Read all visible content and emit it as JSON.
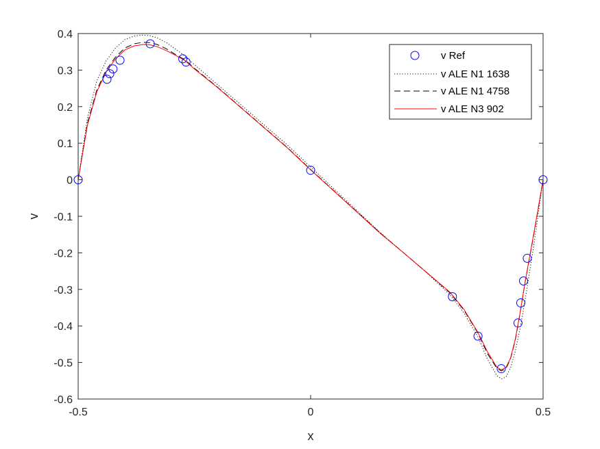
{
  "chart_data": {
    "type": "line",
    "title": "",
    "xlabel": "x",
    "ylabel": "v",
    "xlim": [
      -0.5,
      0.5
    ],
    "ylim": [
      -0.6,
      0.4
    ],
    "xticks": [
      -0.5,
      0,
      0.5
    ],
    "xtick_labels": [
      "-0.5",
      "0",
      "0.5"
    ],
    "yticks": [
      -0.6,
      -0.5,
      -0.4,
      -0.3,
      -0.2,
      -0.1,
      0,
      0.1,
      0.2,
      0.3,
      0.4
    ],
    "ytick_labels": [
      "-0.6",
      "-0.5",
      "-0.4",
      "-0.3",
      "-0.2",
      "-0.1",
      "0",
      "0.1",
      "0.2",
      "0.3",
      "0.4"
    ],
    "grid": false,
    "legend_position": "top-right",
    "series": [
      {
        "name": "v Ref",
        "style": "markers-circle",
        "color": "#0000ff",
        "x": [
          -0.5,
          -0.438,
          -0.432,
          -0.425,
          -0.41,
          -0.345,
          -0.275,
          -0.268,
          0.0,
          0.305,
          0.36,
          0.41,
          0.446,
          0.452,
          0.458,
          0.466,
          0.5
        ],
        "y": [
          0.0,
          0.275,
          0.29,
          0.303,
          0.327,
          0.372,
          0.331,
          0.322,
          0.026,
          -0.32,
          -0.428,
          -0.517,
          -0.392,
          -0.337,
          -0.277,
          -0.215,
          0.0
        ]
      },
      {
        "name": "v ALE N1 1638",
        "style": "dotted",
        "color": "#000000",
        "x": [
          -0.5,
          -0.48,
          -0.46,
          -0.44,
          -0.42,
          -0.4,
          -0.38,
          -0.36,
          -0.345,
          -0.33,
          -0.31,
          -0.29,
          -0.27,
          -0.25,
          -0.2,
          -0.15,
          -0.1,
          -0.05,
          0.0,
          0.05,
          0.1,
          0.15,
          0.2,
          0.25,
          0.3,
          0.33,
          0.36,
          0.38,
          0.4,
          0.41,
          0.42,
          0.43,
          0.44,
          0.45,
          0.46,
          0.47,
          0.48,
          0.49,
          0.5
        ],
        "y": [
          0.0,
          0.17,
          0.27,
          0.325,
          0.36,
          0.383,
          0.393,
          0.396,
          0.394,
          0.388,
          0.375,
          0.357,
          0.338,
          0.315,
          0.26,
          0.205,
          0.15,
          0.095,
          0.035,
          -0.025,
          -0.085,
          -0.145,
          -0.2,
          -0.255,
          -0.315,
          -0.365,
          -0.43,
          -0.49,
          -0.535,
          -0.545,
          -0.54,
          -0.515,
          -0.47,
          -0.41,
          -0.34,
          -0.26,
          -0.18,
          -0.09,
          0.0
        ]
      },
      {
        "name": "v ALE N1 4758",
        "style": "dashed",
        "color": "#000000",
        "x": [
          -0.5,
          -0.48,
          -0.46,
          -0.44,
          -0.42,
          -0.4,
          -0.38,
          -0.36,
          -0.345,
          -0.33,
          -0.31,
          -0.29,
          -0.27,
          -0.25,
          -0.2,
          -0.15,
          -0.1,
          -0.05,
          0.0,
          0.05,
          0.1,
          0.15,
          0.2,
          0.25,
          0.3,
          0.33,
          0.36,
          0.38,
          0.4,
          0.41,
          0.42,
          0.43,
          0.44,
          0.45,
          0.46,
          0.47,
          0.48,
          0.49,
          0.5
        ],
        "y": [
          0.0,
          0.155,
          0.245,
          0.3,
          0.335,
          0.36,
          0.372,
          0.376,
          0.375,
          0.37,
          0.358,
          0.342,
          0.328,
          0.305,
          0.253,
          0.198,
          0.143,
          0.088,
          0.028,
          -0.03,
          -0.088,
          -0.146,
          -0.2,
          -0.254,
          -0.31,
          -0.357,
          -0.42,
          -0.475,
          -0.515,
          -0.523,
          -0.517,
          -0.49,
          -0.44,
          -0.37,
          -0.29,
          -0.22,
          -0.15,
          -0.075,
          0.0
        ]
      },
      {
        "name": "v ALE N3 902",
        "style": "solid",
        "color": "#ff0000",
        "x": [
          -0.5,
          -0.48,
          -0.46,
          -0.44,
          -0.42,
          -0.4,
          -0.38,
          -0.36,
          -0.345,
          -0.33,
          -0.31,
          -0.29,
          -0.27,
          -0.25,
          -0.2,
          -0.15,
          -0.1,
          -0.05,
          0.0,
          0.05,
          0.1,
          0.15,
          0.2,
          0.25,
          0.3,
          0.33,
          0.36,
          0.38,
          0.4,
          0.41,
          0.42,
          0.43,
          0.44,
          0.45,
          0.46,
          0.47,
          0.48,
          0.49,
          0.5
        ],
        "y": [
          0.0,
          0.15,
          0.24,
          0.295,
          0.33,
          0.355,
          0.366,
          0.37,
          0.369,
          0.364,
          0.353,
          0.34,
          0.326,
          0.303,
          0.252,
          0.197,
          0.142,
          0.087,
          0.027,
          -0.031,
          -0.089,
          -0.147,
          -0.2,
          -0.254,
          -0.308,
          -0.355,
          -0.418,
          -0.47,
          -0.512,
          -0.52,
          -0.514,
          -0.488,
          -0.437,
          -0.368,
          -0.29,
          -0.218,
          -0.147,
          -0.074,
          0.0
        ]
      }
    ]
  }
}
